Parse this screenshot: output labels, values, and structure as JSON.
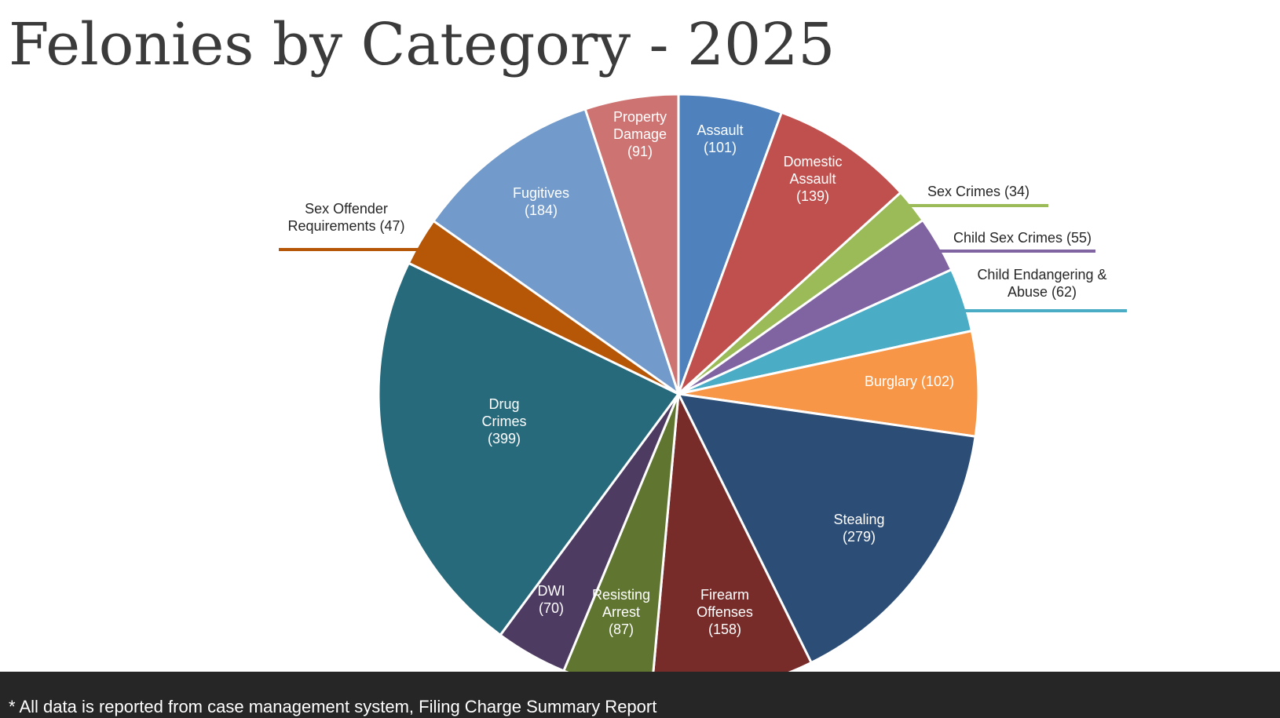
{
  "page": {
    "title": "Felonies by Category - 2025",
    "footnote": "* All data is reported from case management system, Filing Charge Summary Report"
  },
  "chart_data": {
    "type": "pie",
    "title": "Felonies by Category - 2025",
    "slices": [
      {
        "category": "Assault",
        "value": 101,
        "color": "#4f81bd",
        "label_lines": [
          "Assault",
          "(101)"
        ],
        "label_style": "inside"
      },
      {
        "category": "Domestic Assault",
        "value": 139,
        "color": "#c0504d",
        "label_lines": [
          "Domestic",
          "Assault",
          "(139)"
        ],
        "label_style": "inside"
      },
      {
        "category": "Sex Crimes",
        "value": 34,
        "color": "#9bbb59",
        "label_lines": [
          "Sex Crimes (34)"
        ],
        "label_style": "outside"
      },
      {
        "category": "Child Sex Crimes",
        "value": 55,
        "color": "#8064a2",
        "label_lines": [
          "Child Sex Crimes (55)"
        ],
        "label_style": "outside"
      },
      {
        "category": "Child Endangering & Abuse",
        "value": 62,
        "color": "#4bacc6",
        "label_lines": [
          "Child Endangering &",
          "Abuse (62)"
        ],
        "label_style": "outside"
      },
      {
        "category": "Burglary",
        "value": 102,
        "color": "#f79646",
        "label_lines": [
          "Burglary (102)"
        ],
        "label_style": "inside"
      },
      {
        "category": "Stealing",
        "value": 279,
        "color": "#2c4d75",
        "label_lines": [
          "Stealing",
          "(279)"
        ],
        "label_style": "inside"
      },
      {
        "category": "Firearm Offenses",
        "value": 158,
        "color": "#772c2a",
        "label_lines": [
          "Firearm",
          "Offenses",
          "(158)"
        ],
        "label_style": "inside"
      },
      {
        "category": "Resisting Arrest",
        "value": 87,
        "color": "#5f7530",
        "label_lines": [
          "Resisting",
          "Arrest",
          "(87)"
        ],
        "label_style": "inside"
      },
      {
        "category": "DWI",
        "value": 70,
        "color": "#4d3b62",
        "label_lines": [
          "DWI",
          "(70)"
        ],
        "label_style": "inside"
      },
      {
        "category": "Drug Crimes",
        "value": 399,
        "color": "#276a7c",
        "label_lines": [
          "Drug",
          "Crimes",
          "(399)"
        ],
        "label_style": "inside"
      },
      {
        "category": "Sex Offender Requirements",
        "value": 47,
        "color": "#b65708",
        "label_lines": [
          "Sex Offender",
          "Requirements (47)"
        ],
        "label_style": "outside"
      },
      {
        "category": "Fugitives",
        "value": 184,
        "color": "#729aca",
        "label_lines": [
          "Fugitives",
          "(184)"
        ],
        "label_style": "inside"
      },
      {
        "category": "Property Damage",
        "value": 91,
        "color": "#cd7371",
        "label_lines": [
          "Property",
          "Damage",
          "(91)"
        ],
        "label_style": "inside"
      }
    ],
    "legend": "none"
  }
}
